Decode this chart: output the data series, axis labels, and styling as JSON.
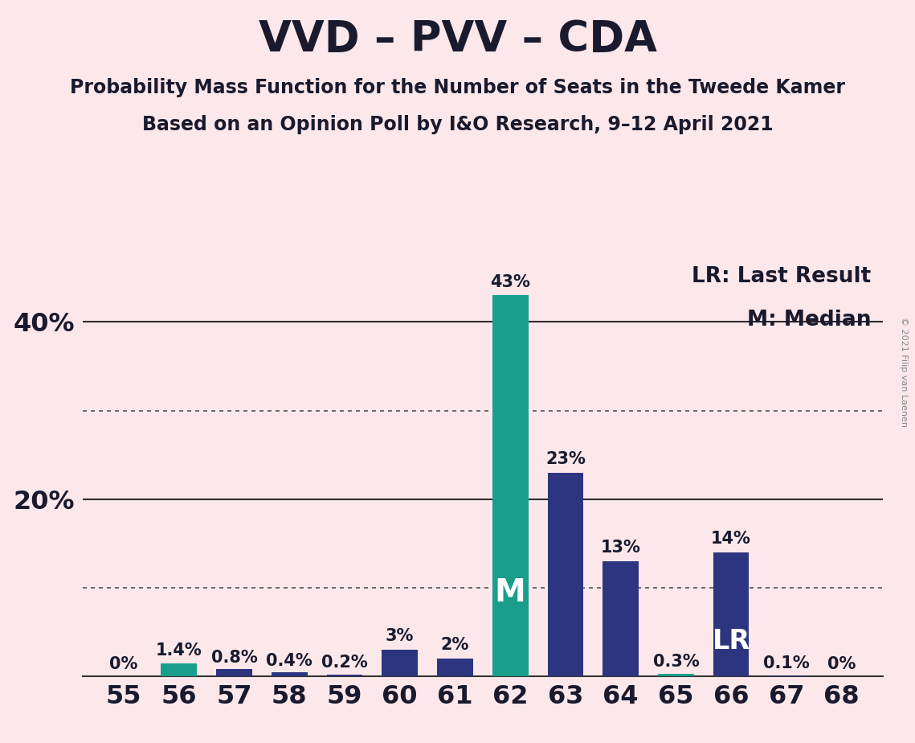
{
  "title": "VVD – PVV – CDA",
  "subtitle1": "Probability Mass Function for the Number of Seats in the Tweede Kamer",
  "subtitle2": "Based on an Opinion Poll by I&O Research, 9–12 April 2021",
  "copyright": "© 2021 Filip van Laenen",
  "legend_lr": "LR: Last Result",
  "legend_m": "M: Median",
  "seats": [
    55,
    56,
    57,
    58,
    59,
    60,
    61,
    62,
    63,
    64,
    65,
    66,
    67,
    68
  ],
  "values": [
    0.0,
    1.4,
    0.8,
    0.4,
    0.2,
    3.0,
    2.0,
    43.0,
    23.0,
    13.0,
    0.3,
    14.0,
    0.1,
    0.0
  ],
  "labels": [
    "0%",
    "1.4%",
    "0.8%",
    "0.4%",
    "0.2%",
    "3%",
    "2%",
    "43%",
    "23%",
    "13%",
    "0.3%",
    "14%",
    "0.1%",
    "0%"
  ],
  "bar_colors": [
    "#1a9e8c",
    "#1a9e8c",
    "#2d3580",
    "#2d3580",
    "#2d3580",
    "#2d3580",
    "#2d3580",
    "#1a9e8c",
    "#2d3580",
    "#2d3580",
    "#1a9e8c",
    "#2d3580",
    "#2d3580",
    "#2d3580"
  ],
  "median_seat": 62,
  "lr_seat": 66,
  "background_color": "#fce8ea",
  "yticks": [
    20,
    40
  ],
  "yticks_dotted": [
    10,
    30
  ],
  "ylim": [
    0,
    47
  ],
  "title_fontsize": 38,
  "subtitle_fontsize": 17,
  "legend_fontsize": 19,
  "bar_label_fontsize": 15,
  "inside_label_fontsize_m": 28,
  "inside_label_fontsize_lr": 24,
  "axis_tick_fontsize": 23,
  "bar_width": 0.65
}
